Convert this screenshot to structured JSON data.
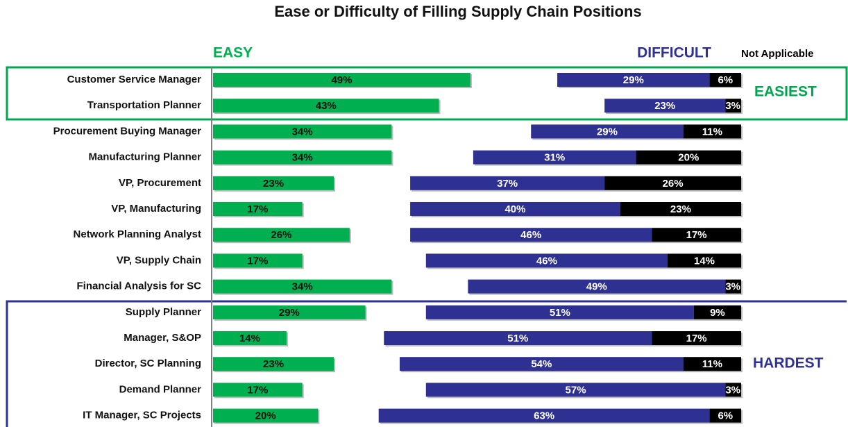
{
  "chart_data": {
    "type": "bar",
    "orientation": "horizontal",
    "title": "Ease or Difficulty of Filling Supply Chain Positions",
    "categories": [
      "Customer Service Manager",
      "Transportation Planner",
      "Procurement Buying Manager",
      "Manufacturing Planner",
      "VP, Procurement",
      "VP, Manufacturing",
      "Network Planning Analyst",
      "VP, Supply Chain",
      "Financial Analysis for SC",
      "Supply Planner",
      "Manager, S&OP",
      "Director, SC Planning",
      "Demand Planner",
      "IT Manager, SC Projects"
    ],
    "series": [
      {
        "name": "EASY",
        "color": "#00b050",
        "label_color": "#111111",
        "values": [
          49,
          43,
          34,
          34,
          23,
          17,
          26,
          17,
          34,
          29,
          14,
          23,
          17,
          20
        ],
        "value_labels": [
          "49%",
          "43%",
          "34%",
          "34%",
          "23%",
          "17%",
          "26%",
          "17%",
          "34%",
          "29%",
          "14%",
          "23%",
          "17%",
          "20%"
        ]
      },
      {
        "name": "DIFFICULT",
        "color": "#2e3192",
        "label_color": "#ffffff",
        "values": [
          29,
          23,
          29,
          31,
          37,
          40,
          46,
          46,
          49,
          51,
          51,
          54,
          57,
          63
        ],
        "value_labels": [
          "29%",
          "23%",
          "29%",
          "31%",
          "37%",
          "40%",
          "46%",
          "46%",
          "49%",
          "51%",
          "51%",
          "54%",
          "57%",
          "63%"
        ]
      },
      {
        "name": "Not Applicable",
        "color": "#000000",
        "label_color": "#ffffff",
        "values": [
          6,
          3,
          11,
          20,
          26,
          23,
          17,
          14,
          3,
          9,
          17,
          11,
          3,
          6
        ],
        "value_labels": [
          "6%",
          "3%",
          "11%",
          "20%",
          "26%",
          "23%",
          "17%",
          "14%",
          "3%",
          "9%",
          "17%",
          "11%",
          "3%",
          "6%"
        ]
      }
    ],
    "annotations": [
      "EASIEST",
      "HARDEST"
    ]
  }
}
